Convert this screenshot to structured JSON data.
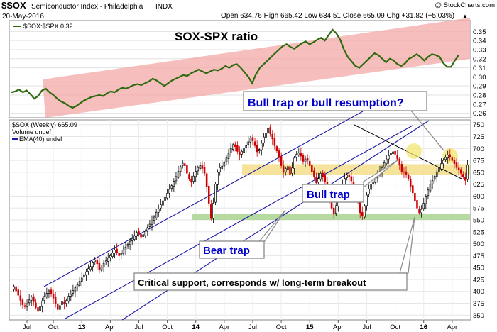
{
  "header": {
    "symbol": "$SOX",
    "name": "Semiconductor Index - Philadelphia",
    "exchange": "INDX",
    "date": "20-May-2016",
    "watermark": "@ StockCharts.com",
    "quote": "Open 634.76  High 665.42  Low 634.51  Close 665.09  Chg +31.82 (+5.03%)",
    "quote_up_marker": "▲"
  },
  "colors": {
    "ratio_line": "#2e6b0f",
    "candle_up": "#000000",
    "candle_down": "#cc0000",
    "channel": "#1a1aa8",
    "ratio_band": "#f4a8a8",
    "resistance_band": "#f5df8c",
    "support_band": "#a9d48f",
    "highlight_circle": "#f3e46a",
    "annotation_text": "#0000cc"
  },
  "chart_data": [
    {
      "type": "line",
      "legend": "$SOX:$SPX 0.32",
      "title": "SOX-SPX ratio",
      "ylim": [
        0.255,
        0.362
      ],
      "yticks": [
        0.26,
        0.27,
        0.28,
        0.29,
        0.3,
        0.31,
        0.32,
        0.33,
        0.34,
        0.35
      ],
      "ytick_labels": [
        "0.26",
        "0.27",
        "0.28",
        "0.29",
        "0.30",
        "0.31",
        "0.32",
        "0.33",
        "0.34",
        "0.35"
      ],
      "grid": true,
      "series": [
        {
          "name": "$SOX:$SPX",
          "values": [
            0.283,
            0.284,
            0.286,
            0.283,
            0.285,
            0.281,
            0.276,
            0.279,
            0.285,
            0.287,
            0.283,
            0.28,
            0.276,
            0.273,
            0.271,
            0.268,
            0.266,
            0.268,
            0.271,
            0.274,
            0.276,
            0.278,
            0.279,
            0.28,
            0.279,
            0.282,
            0.284,
            0.283,
            0.286,
            0.288,
            0.287,
            0.289,
            0.291,
            0.292,
            0.291,
            0.293,
            0.295,
            0.298,
            0.296,
            0.293,
            0.29,
            0.293,
            0.296,
            0.298,
            0.3,
            0.302,
            0.301,
            0.304,
            0.306,
            0.308,
            0.306,
            0.304,
            0.306,
            0.308,
            0.307,
            0.309,
            0.312,
            0.31,
            0.313,
            0.314,
            0.31,
            0.305,
            0.3,
            0.293,
            0.303,
            0.31,
            0.314,
            0.318,
            0.322,
            0.326,
            0.33,
            0.334,
            0.336,
            0.333,
            0.331,
            0.334,
            0.337,
            0.339,
            0.336,
            0.338,
            0.341,
            0.343,
            0.34,
            0.346,
            0.352,
            0.348,
            0.341,
            0.33,
            0.322,
            0.317,
            0.312,
            0.31,
            0.314,
            0.318,
            0.322,
            0.326,
            0.324,
            0.32,
            0.316,
            0.32,
            0.318,
            0.314,
            0.312,
            0.315,
            0.32,
            0.322,
            0.325,
            0.322,
            0.318,
            0.322,
            0.325,
            0.324,
            0.322,
            0.315,
            0.311,
            0.311,
            0.318,
            0.324
          ]
        }
      ]
    },
    {
      "type": "candlestick",
      "legend": "$SOX (Weekly) 665.09",
      "legend_volume": "Volume undef",
      "legend_ema": "EMA(40) undef",
      "ylim": [
        340,
        760
      ],
      "yticks": [
        350,
        375,
        400,
        425,
        450,
        475,
        500,
        525,
        550,
        575,
        600,
        625,
        650,
        675,
        700,
        725,
        750
      ],
      "ytick_labels": [
        "350",
        "375",
        "400",
        "425",
        "450",
        "475",
        "500",
        "525",
        "550",
        "575",
        "600",
        "625",
        "650",
        "675",
        "700",
        "725",
        "750"
      ],
      "xtick_labels": [
        "Jul",
        "Oct",
        "13",
        "Apr",
        "Jul",
        "Oct",
        "14",
        "Apr",
        "Jul",
        "Oct",
        "15",
        "Apr",
        "Jul",
        "Oct",
        "16",
        "Apr"
      ],
      "xtick_weeks": [
        6,
        18,
        31,
        44,
        57,
        70,
        83,
        96,
        109,
        122,
        135,
        148,
        161,
        174,
        187,
        200
      ],
      "xtick_bold": [
        false,
        false,
        true,
        false,
        false,
        false,
        true,
        false,
        false,
        false,
        true,
        false,
        false,
        false,
        true,
        false
      ],
      "grid": true,
      "bands": [
        {
          "name": "resistance",
          "from": 645,
          "to": 667
        },
        {
          "name": "support",
          "from": 550,
          "to": 562
        }
      ],
      "close": [
        410,
        401,
        392,
        381,
        372,
        368,
        374,
        382,
        388,
        378,
        366,
        358,
        369,
        380,
        390,
        396,
        401,
        395,
        386,
        374,
        362,
        370,
        378,
        374,
        381,
        390,
        394,
        402,
        408,
        414,
        421,
        428,
        435,
        441,
        448,
        452,
        460,
        466,
        458,
        446,
        451,
        459,
        464,
        470,
        475,
        481,
        487,
        482,
        475,
        481,
        487,
        493,
        499,
        505,
        511,
        517,
        524,
        521,
        514,
        519,
        526,
        534,
        541,
        548,
        556,
        566,
        573,
        582,
        590,
        598,
        606,
        614,
        622,
        631,
        641,
        652,
        662,
        669,
        664,
        648,
        636,
        629,
        642,
        652,
        660,
        664,
        658,
        648,
        620,
        585,
        553,
        585,
        625,
        650,
        660,
        663,
        670,
        680,
        690,
        700,
        708,
        704,
        694,
        687,
        694,
        701,
        706,
        714,
        722,
        716,
        706,
        693,
        698,
        711,
        724,
        732,
        742,
        731,
        720,
        706,
        695,
        681,
        664,
        650,
        658,
        662,
        646,
        659,
        680,
        688,
        691,
        684,
        673,
        678,
        675,
        664,
        651,
        641,
        628,
        637,
        648,
        641,
        630,
        612,
        592,
        575,
        562,
        580,
        600,
        612,
        625,
        637,
        645,
        640,
        632,
        620,
        605,
        590,
        565,
        558,
        580,
        602,
        615,
        625,
        630,
        638,
        645,
        652,
        660,
        670,
        678,
        685,
        690,
        693,
        688,
        678,
        665,
        652,
        650,
        646,
        636,
        620,
        607,
        590,
        575,
        565,
        572,
        585,
        600,
        613,
        625,
        633,
        642,
        651,
        659,
        668,
        675,
        681,
        686,
        682,
        675,
        668,
        660,
        655,
        648,
        640,
        633,
        665
      ]
    }
  ],
  "annotations": {
    "bull_trap_or_resumption": "Bull trap or bull resumption?",
    "bull_trap": "Bull trap",
    "bear_trap": "Bear trap",
    "critical_support": "Critical support, corresponds w/ long-term breakout"
  }
}
